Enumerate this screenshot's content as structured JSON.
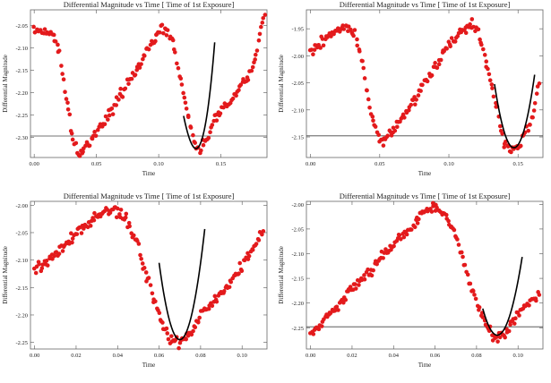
{
  "chart_data": [
    {
      "type": "scatter",
      "title": "Differential Magnitude vs Time [          Time of 1st Exposure]",
      "xlabel": "Time",
      "ylabel": "Differential Magnitude",
      "xlim": [
        -0.003,
        0.187
      ],
      "ylim": [
        -2.345,
        -2.015
      ],
      "y_reversed": true,
      "xticks": [
        0.0,
        0.05,
        0.1,
        0.15
      ],
      "xtick_labels": [
        "0.00",
        "0.05",
        "0.10",
        "0.15"
      ],
      "yticks": [
        -2.05,
        -2.1,
        -2.15,
        -2.2,
        -2.25,
        -2.3
      ],
      "ytick_labels": [
        "-2.05",
        "-2.10",
        "-2.15",
        "-2.20",
        "-2.25",
        "-2.30"
      ],
      "reference_line": -2.297,
      "marker_color": "#e31a1c",
      "fit_color": "#000000",
      "curve_knots": {
        "x": [
          0.0,
          0.012,
          0.02,
          0.025,
          0.03,
          0.035,
          0.045,
          0.06,
          0.08,
          0.095,
          0.103,
          0.11,
          0.118,
          0.125,
          0.13,
          0.133,
          0.137,
          0.145,
          0.16,
          0.175,
          0.185
        ],
        "y": [
          -2.06,
          -2.065,
          -2.1,
          -2.2,
          -2.29,
          -2.335,
          -2.31,
          -2.25,
          -2.16,
          -2.09,
          -2.055,
          -2.075,
          -2.17,
          -2.27,
          -2.32,
          -2.33,
          -2.31,
          -2.26,
          -2.21,
          -2.15,
          -2.02
        ]
      },
      "fit": {
        "x0": 0.13,
        "y0": -2.325,
        "a": 860,
        "b": 13000,
        "xmin": 0.12,
        "xmax": 0.145
      }
    },
    {
      "type": "scatter",
      "title": "Differential Magnitude vs Time [          Time of 1st Exposure]",
      "xlabel": "Time",
      "ylabel": "Differential Magnitude",
      "xlim": [
        -0.003,
        0.168
      ],
      "ylim": [
        -2.188,
        -1.915
      ],
      "y_reversed": true,
      "xticks": [
        0.0,
        0.05,
        0.1,
        0.15
      ],
      "xtick_labels": [
        "0.00",
        "0.05",
        "0.10",
        "0.15"
      ],
      "yticks": [
        -1.95,
        -2.0,
        -2.05,
        -2.1,
        -2.15
      ],
      "ytick_labels": [
        "-1.95",
        "-2.00",
        "-2.05",
        "-2.10",
        "-2.15"
      ],
      "reference_line": -2.148,
      "marker_color": "#e31a1c",
      "fit_color": "#000000",
      "curve_knots": {
        "x": [
          0.0,
          0.015,
          0.025,
          0.032,
          0.038,
          0.043,
          0.05,
          0.06,
          0.08,
          0.1,
          0.115,
          0.12,
          0.128,
          0.135,
          0.14,
          0.145,
          0.15,
          0.16,
          0.165
        ],
        "y": [
          -1.99,
          -1.96,
          -1.945,
          -1.96,
          -2.02,
          -2.1,
          -2.16,
          -2.14,
          -2.06,
          -1.98,
          -1.94,
          -1.95,
          -2.02,
          -2.1,
          -2.16,
          -2.175,
          -2.17,
          -2.12,
          -2.05
        ]
      },
      "fit": {
        "x0": 0.147,
        "y0": -2.17,
        "a": 600,
        "b": 0,
        "xmin": 0.133,
        "xmax": 0.162
      }
    },
    {
      "type": "scatter",
      "title": "Differential Magnitude vs Time [          Time of 1st Exposure]",
      "xlabel": "Time",
      "ylabel": "Differential Magnitude",
      "xlim": [
        -0.002,
        0.112
      ],
      "ylim": [
        -2.262,
        -1.993
      ],
      "y_reversed": true,
      "xticks": [
        0.0,
        0.02,
        0.04,
        0.06,
        0.08,
        0.1
      ],
      "xtick_labels": [
        "0.00",
        "0.02",
        "0.04",
        "0.06",
        "0.08",
        "0.10"
      ],
      "yticks": [
        -2.0,
        -2.05,
        -2.1,
        -2.15,
        -2.2,
        -2.25
      ],
      "ytick_labels": [
        "-2.00",
        "-2.05",
        "-2.10",
        "-2.15",
        "-2.20",
        "-2.25"
      ],
      "reference_line": null,
      "marker_color": "#e31a1c",
      "fit_color": "#000000",
      "curve_knots": {
        "x": [
          0.0,
          0.01,
          0.02,
          0.03,
          0.038,
          0.045,
          0.05,
          0.055,
          0.06,
          0.065,
          0.07,
          0.075,
          0.08,
          0.09,
          0.1,
          0.11
        ],
        "y": [
          -2.12,
          -2.09,
          -2.05,
          -2.02,
          -2.005,
          -2.03,
          -2.08,
          -2.14,
          -2.2,
          -2.24,
          -2.25,
          -2.23,
          -2.2,
          -2.16,
          -2.11,
          -2.05
        ]
      },
      "fit": {
        "x0": 0.07,
        "y0": -2.245,
        "a": 1400,
        "b": 0,
        "xmin": 0.06,
        "xmax": 0.082
      }
    },
    {
      "type": "scatter",
      "title": "Differential Magnitude vs Time [          Time of 1st Exposure]",
      "xlabel": "Time",
      "ylabel": "Differential Magnitude",
      "xlim": [
        -0.002,
        0.112
      ],
      "ylim": [
        -2.293,
        -1.994
      ],
      "y_reversed": true,
      "xticks": [
        0.0,
        0.02,
        0.04,
        0.06,
        0.08,
        0.1
      ],
      "xtick_labels": [
        "0.00",
        "0.02",
        "0.04",
        "0.06",
        "0.08",
        "0.10"
      ],
      "yticks": [
        -2.0,
        -2.05,
        -2.1,
        -2.15,
        -2.2,
        -2.25
      ],
      "ytick_labels": [
        "-2.00",
        "-2.05",
        "-2.10",
        "-2.15",
        "-2.20",
        "-2.25"
      ],
      "reference_line": -2.248,
      "marker_color": "#e31a1c",
      "fit_color": "#000000",
      "curve_knots": {
        "x": [
          0.0,
          0.01,
          0.02,
          0.03,
          0.04,
          0.05,
          0.055,
          0.06,
          0.065,
          0.07,
          0.075,
          0.08,
          0.085,
          0.09,
          0.095,
          0.1,
          0.11
        ],
        "y": [
          -2.26,
          -2.22,
          -2.17,
          -2.13,
          -2.08,
          -2.04,
          -2.01,
          -2.005,
          -2.02,
          -2.07,
          -2.13,
          -2.2,
          -2.25,
          -2.27,
          -2.26,
          -2.22,
          -2.18
        ]
      },
      "fit": {
        "x0": 0.09,
        "y0": -2.265,
        "a": 1100,
        "b": 0,
        "xmin": 0.083,
        "xmax": 0.102
      }
    }
  ]
}
